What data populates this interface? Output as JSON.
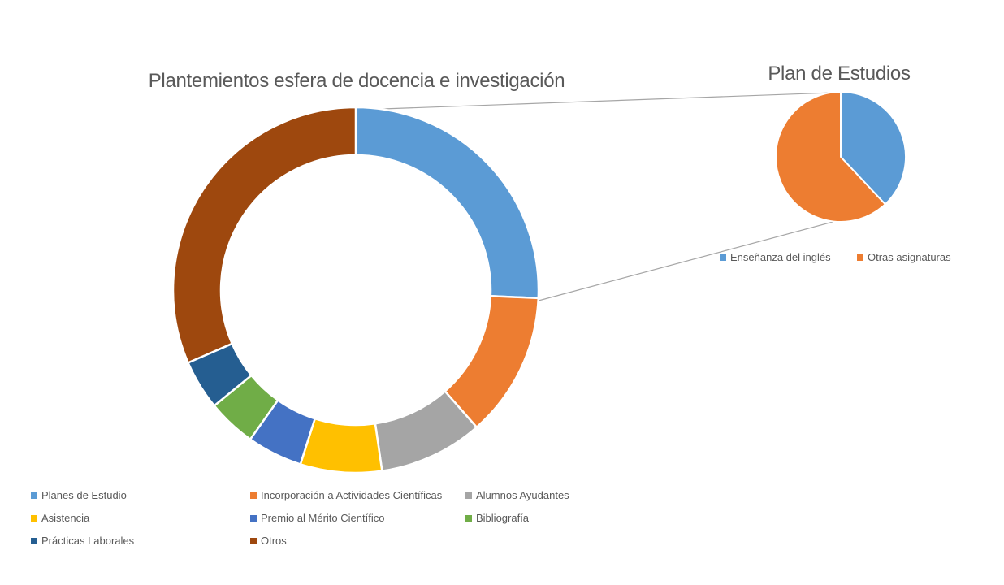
{
  "style": {
    "background": "#FFFFFF",
    "text_color": "#595959",
    "slice_border_color": "#FFFFFF",
    "connector_line_color": "#A6A6A6"
  },
  "chart_data": [
    {
      "type": "pie",
      "subtype": "doughnut",
      "title": "Plantemientos esfera de docencia e investigación",
      "start_angle_deg": 0,
      "direction": "clockwise",
      "data_labels_shown": false,
      "legend_position": "bottom-left",
      "series": [
        {
          "label": "Planes de Estudio",
          "value": 25.7,
          "color": "#5B9BD5"
        },
        {
          "label": "Incorporación a Actividades Científicas",
          "value": 12.8,
          "color": "#ED7D31"
        },
        {
          "label": "Alumnos Ayudantes",
          "value": 9.2,
          "color": "#A5A5A5"
        },
        {
          "label": "Asistencia",
          "value": 7.2,
          "color": "#FFC000"
        },
        {
          "label": "Premio al Mérito Científico",
          "value": 4.9,
          "color": "#4472C4"
        },
        {
          "label": "Bibliografía",
          "value": 4.3,
          "color": "#70AD47"
        },
        {
          "label": "Prácticas Laborales",
          "value": 4.4,
          "color": "#255E91"
        },
        {
          "label": "Otros",
          "value": 31.5,
          "color": "#9E480E"
        }
      ]
    },
    {
      "type": "pie",
      "subtype": "pie",
      "title": "Plan de Estudios",
      "start_angle_deg": 0,
      "direction": "clockwise",
      "data_labels_shown": false,
      "legend_position": "bottom",
      "linked_from_slice": "Planes de Estudio",
      "series": [
        {
          "label": "Enseñanza del inglés",
          "value": 38,
          "color": "#5B9BD5"
        },
        {
          "label": "Otras asignaturas",
          "value": 62,
          "color": "#ED7D31"
        }
      ]
    }
  ]
}
